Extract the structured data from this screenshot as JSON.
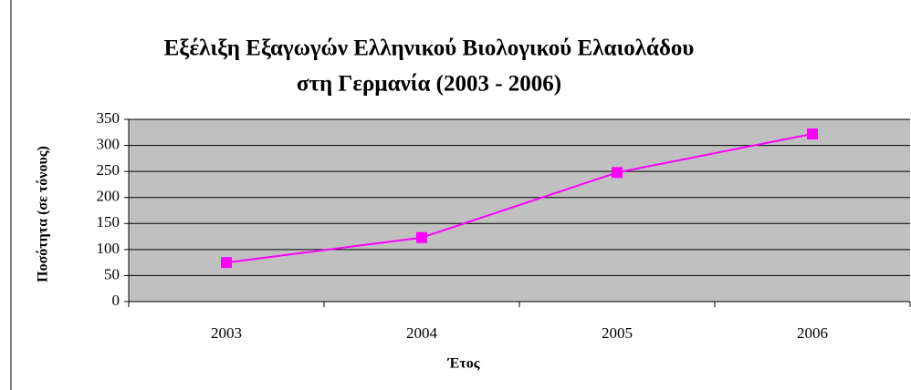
{
  "chart_data": {
    "type": "line",
    "title": [
      "Εξέλιξη Εξαγωγών Ελληνικού Βιολογικού Ελαιολάδου",
      "στη Γερμανία (2003 - 2006)"
    ],
    "x_label": "Έτος",
    "y_label": "Ποσότητα (σε τόνους)",
    "categories": [
      "2003",
      "2004",
      "2005",
      "2006"
    ],
    "series": [
      {
        "name": "Ποσότητα",
        "color": "#ff00ff",
        "values": [
          75,
          123,
          248,
          322
        ]
      }
    ],
    "ylim": [
      0,
      350
    ],
    "yticks": [
      0,
      50,
      100,
      150,
      200,
      250,
      300,
      350
    ],
    "grid": true,
    "plot_background": "#c0c0c0"
  }
}
